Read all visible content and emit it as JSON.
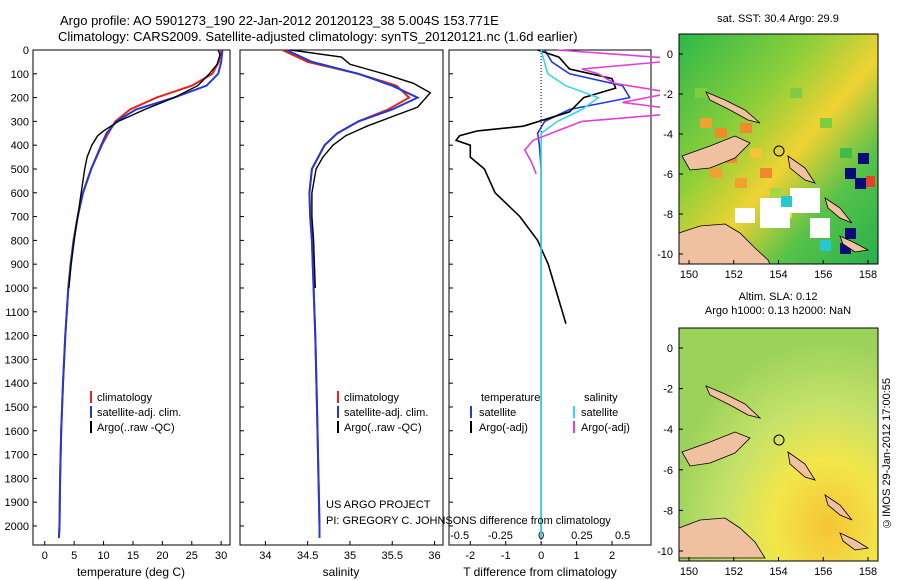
{
  "header": {
    "line1": "Argo profile: AO 5901273_190 22-Jan-2012 20120123_38 5.004S 153.771E",
    "line2": "Climatology: CARS2009. Satellite-adjusted climatology: synTS_20120121.nc (1.6d earlier)"
  },
  "colors": {
    "climatology": "#e8231a",
    "satellite": "#1f3bd6",
    "argo": "#000000",
    "sat_sal": "#35d8e6",
    "argo_sal": "#e040d8"
  },
  "depth_axis": {
    "ticks": [
      "0",
      "100",
      "200",
      "300",
      "400",
      "500",
      "600",
      "700",
      "800",
      "900",
      "1000",
      "1100",
      "1200",
      "1300",
      "1400",
      "1500",
      "1600",
      "1700",
      "1800",
      "1900",
      "2000"
    ]
  },
  "chart_data": [
    {
      "type": "line",
      "title": "",
      "xlabel": "temperature (deg C)",
      "ylabel": "depth",
      "xlim": [
        -2,
        31.5
      ],
      "ylim": [
        2080,
        0
      ],
      "xticks": [
        "0",
        "5",
        "10",
        "15",
        "20",
        "25",
        "30"
      ],
      "legend": [
        "climatology",
        "satellite-adj. clim.",
        "Argo(..raw -QC)"
      ],
      "series": [
        {
          "name": "climatology",
          "depth": [
            0,
            50,
            100,
            150,
            200,
            250,
            300,
            350,
            400,
            500,
            600,
            700,
            800,
            900,
            1000,
            1200,
            1400,
            1600,
            1800,
            2000,
            2050
          ],
          "values": [
            30,
            29.6,
            28.5,
            25,
            19,
            14.5,
            12,
            10.8,
            9.7,
            7.9,
            6.5,
            5.6,
            4.9,
            4.4,
            4.0,
            3.5,
            3.1,
            2.8,
            2.6,
            2.5,
            2.4
          ]
        },
        {
          "name": "satellite-adj. clim.",
          "depth": [
            0,
            50,
            100,
            150,
            200,
            250,
            300,
            350,
            400,
            500,
            600,
            700,
            800,
            900,
            1000,
            1200,
            1400,
            1600,
            1800,
            2000,
            2050
          ],
          "values": [
            30.2,
            30,
            29.5,
            27.5,
            22,
            15.5,
            12.2,
            10.5,
            9.6,
            7.9,
            6.5,
            5.6,
            4.9,
            4.4,
            4.0,
            3.5,
            3.1,
            2.8,
            2.6,
            2.5,
            2.4
          ]
        },
        {
          "name": "Argo(..raw -QC)",
          "depth": [
            0,
            20,
            60,
            100,
            150,
            200,
            250,
            300,
            340,
            360,
            400,
            450,
            500,
            600,
            700,
            800,
            900,
            1000
          ],
          "values": [
            29.5,
            29.8,
            29.3,
            28,
            26,
            22,
            17,
            12.5,
            10,
            9.0,
            8.0,
            7.2,
            6.8,
            6.2,
            5.6,
            5.0,
            4.5,
            4.1
          ]
        }
      ]
    },
    {
      "type": "line",
      "title": "",
      "xlabel": "salinity",
      "ylabel": "depth",
      "xlim": [
        33.7,
        36.1
      ],
      "ylim": [
        2080,
        0
      ],
      "xticks": [
        "34",
        "34.5",
        "35",
        "35.5",
        "36"
      ],
      "legend": [
        "climatology",
        "satellite-adj. clim.",
        "Argo(..raw -QC)"
      ],
      "series": [
        {
          "name": "climatology",
          "depth": [
            0,
            50,
            100,
            150,
            200,
            250,
            300,
            350,
            400,
            500,
            600,
            700,
            800,
            1000,
            1200,
            1500,
            2000,
            2050
          ],
          "values": [
            34.2,
            34.5,
            35.1,
            35.55,
            35.7,
            35.45,
            35.1,
            34.85,
            34.7,
            34.55,
            34.52,
            34.53,
            34.55,
            34.57,
            34.59,
            34.61,
            34.64,
            34.64
          ]
        },
        {
          "name": "satellite-adj. clim.",
          "depth": [
            0,
            50,
            100,
            150,
            200,
            250,
            300,
            350,
            400,
            500,
            600,
            700,
            800,
            1000,
            1200,
            1500,
            2000,
            2050
          ],
          "values": [
            34.25,
            34.55,
            35.1,
            35.5,
            35.8,
            35.5,
            35.1,
            34.85,
            34.7,
            34.55,
            34.52,
            34.53,
            34.55,
            34.57,
            34.59,
            34.61,
            34.64,
            34.64
          ]
        },
        {
          "name": "Argo(..raw -QC)",
          "depth": [
            0,
            30,
            60,
            100,
            140,
            180,
            200,
            240,
            280,
            320,
            360,
            400,
            450,
            500,
            600,
            700,
            800,
            900,
            1000
          ],
          "values": [
            34.3,
            34.9,
            35.0,
            35.4,
            35.75,
            35.95,
            35.9,
            35.8,
            35.5,
            35.2,
            34.95,
            34.8,
            34.68,
            34.6,
            34.55,
            34.55,
            34.57,
            34.58,
            34.59
          ]
        }
      ]
    },
    {
      "type": "line",
      "title": "",
      "xlabel": "T difference from climatology",
      "xlabel2": "S difference from climatology",
      "ylabel": "depth",
      "xlim": [
        -2.6,
        3.1
      ],
      "ylim": [
        2080,
        0
      ],
      "xticks": [
        "-2",
        "-1",
        "0",
        "1",
        "2"
      ],
      "xticks_s": [
        "-0.5",
        "-0.25",
        "0",
        "0.25",
        "0.5"
      ],
      "legend_titles": [
        "temperature",
        "salinity"
      ],
      "legend": [
        "satellite",
        "Argo(-adj)",
        "satellite",
        "Argo(-adj)"
      ],
      "series": [
        {
          "name": "temperature satellite",
          "depth": [
            0,
            50,
            100,
            150,
            200,
            250,
            300,
            350,
            400,
            500,
            700,
            1000,
            1500,
            2000,
            2050
          ],
          "values": [
            0.1,
            0.3,
            0.8,
            2.3,
            2.5,
            0.8,
            0.1,
            -0.1,
            -0.05,
            0,
            0,
            0,
            0,
            0,
            0
          ]
        },
        {
          "name": "temperature Argo(-adj)",
          "depth": [
            0,
            30,
            80,
            120,
            160,
            200,
            260,
            320,
            340,
            360,
            380,
            400,
            450,
            500,
            600,
            700,
            800,
            900,
            1000,
            1100,
            1150
          ],
          "values": [
            -0.1,
            0.5,
            0.8,
            2.0,
            2.1,
            1.2,
            0.8,
            -0.5,
            -1.8,
            -2.3,
            -2.4,
            -2.0,
            -2.0,
            -1.6,
            -1.3,
            -0.6,
            -0.1,
            0.2,
            0.4,
            0.6,
            0.7
          ]
        },
        {
          "name": "salinity satellite",
          "depth": [
            0,
            50,
            100,
            150,
            200,
            250,
            300,
            350,
            400,
            500,
            700,
            1000,
            1500,
            2000,
            2050
          ],
          "values": [
            0.0,
            0.02,
            0.04,
            0.15,
            0.35,
            0.25,
            0.1,
            0.0,
            0.0,
            0.0,
            0.0,
            0.0,
            0.0,
            0.0,
            0.0
          ]
        },
        {
          "name": "salinity Argo(-adj)",
          "depth": [
            0,
            40,
            80,
            100,
            140,
            180,
            220,
            260,
            300,
            340,
            380,
            420,
            470,
            520
          ],
          "values": [
            0.1,
            0.9,
            0.25,
            0.35,
            0.45,
            0.8,
            0.5,
            0.95,
            0.25,
            0.1,
            -0.05,
            -0.1,
            -0.06,
            -0.03
          ]
        }
      ]
    }
  ],
  "sst_map": {
    "title": "sat. SST: 30.4  Argo: 29.9",
    "xticks": [
      "150",
      "152",
      "154",
      "156",
      "158"
    ],
    "yticks": [
      "0",
      "-2",
      "-4",
      "-6",
      "-8",
      "-10"
    ]
  },
  "sla_map": {
    "title1": "Altim. SLA: 0.12",
    "title2": "Argo h1000: 0.13 h2000: NaN",
    "xticks": [
      "150",
      "152",
      "154",
      "156",
      "158"
    ],
    "yticks": [
      "0",
      "-2",
      "-4",
      "-6",
      "-8",
      "-10"
    ]
  },
  "annotation": {
    "line1": "US ARGO PROJECT",
    "line2": "PI: GREGORY C. JOHNSON"
  },
  "watermark": "©IMOS 29-Jan-2012 17:00:55"
}
